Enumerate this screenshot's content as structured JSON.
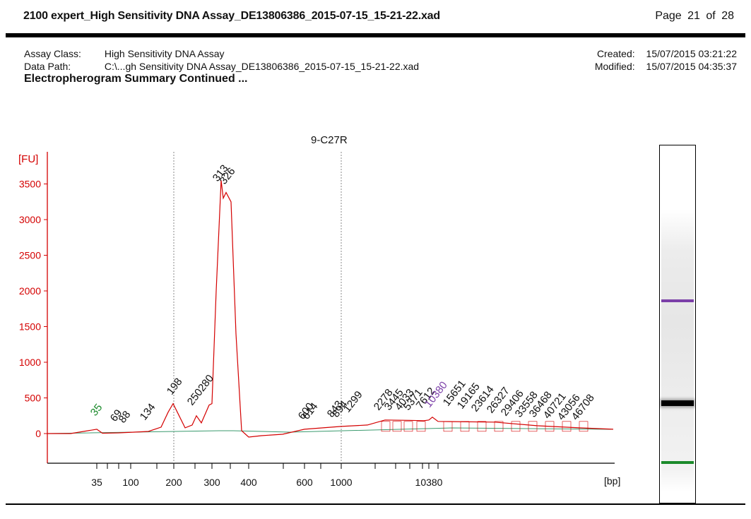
{
  "header": {
    "file_title": "2100 expert_High Sensitivity DNA Assay_DE13806386_2015-07-15_15-21-22.xad",
    "page_word": "Page",
    "page_current": "21",
    "page_of": "of",
    "page_total": "28"
  },
  "meta": {
    "assay_class_label": "Assay Class:",
    "assay_class_value": "High Sensitivity DNA Assay",
    "data_path_label": "Data Path:",
    "data_path_value": "C:\\...gh Sensitivity DNA Assay_DE13806386_2015-07-15_15-21-22.xad",
    "created_label": "Created:",
    "created_value": "15/07/2015 03:21:22 ",
    "modified_label": "Modified:",
    "modified_value": "15/07/2015 04:35:37 "
  },
  "section_title": "Electropherogram Summary Continued ...",
  "colors": {
    "axis": "#d40000",
    "trace": "#d40000",
    "baseline": "#3a9a6e",
    "lower_marker": "#1b8a2b",
    "upper_marker": "#7b3fa8",
    "peak_label": "#111111",
    "gel_band": "#000000"
  },
  "chart_data": {
    "type": "line",
    "title": "9-C27R",
    "ylabel": "[FU]",
    "xlabel": "[bp]",
    "ylim": [
      -400,
      3800
    ],
    "yticks": [
      0,
      500,
      1000,
      1500,
      2000,
      2500,
      3000,
      3500
    ],
    "x_scale": "migration (non-linear, bp)",
    "xticks": [
      {
        "label": "35"
      },
      {
        "label": "100"
      },
      {
        "label": "200"
      },
      {
        "label": "300"
      },
      {
        "label": "400"
      },
      {
        "label": "600"
      },
      {
        "label": "1000"
      },
      {
        "label": "10380"
      }
    ],
    "grid": "vertical dotted lines at 200, 1000 bp",
    "series": [
      {
        "points": [
          {
            "bp": "start",
            "fu": 0
          },
          {
            "bp": "35",
            "fu": 60
          },
          {
            "bp": "69",
            "fu": 10
          },
          {
            "bp": "134",
            "fu": 30
          },
          {
            "bp": "198",
            "fu": 420
          },
          {
            "bp": "250",
            "fu": 250
          },
          {
            "bp": "280",
            "fu": 400
          },
          {
            "bp": "313",
            "fu": 3550
          },
          {
            "bp": "326",
            "fu": 3380
          },
          {
            "bp": "400",
            "fu": -50
          },
          {
            "bp": "600",
            "fu": 60
          },
          {
            "bp": "1000",
            "fu": 100
          },
          {
            "bp": "10380",
            "fu": 190
          },
          {
            "bp": "end",
            "fu": 60
          }
        ]
      }
    ],
    "peak_labels": [
      {
        "text": "35",
        "kind": "lower_marker"
      },
      {
        "text": "69",
        "kind": "peak"
      },
      {
        "text": "88",
        "kind": "peak"
      },
      {
        "text": "134",
        "kind": "peak"
      },
      {
        "text": "198",
        "kind": "peak"
      },
      {
        "text": "250280",
        "kind": "peak"
      },
      {
        "text": "313",
        "kind": "peak"
      },
      {
        "text": "326",
        "kind": "peak"
      },
      {
        "text": "600",
        "kind": "peak"
      },
      {
        "text": "614",
        "kind": "peak"
      },
      {
        "text": "843",
        "kind": "peak"
      },
      {
        "text": "894",
        "kind": "peak"
      },
      {
        "text": "1299",
        "kind": "peak"
      },
      {
        "text": "2278",
        "kind": "peak"
      },
      {
        "text": "3445",
        "kind": "peak"
      },
      {
        "text": "4033",
        "kind": "peak"
      },
      {
        "text": "5371",
        "kind": "peak"
      },
      {
        "text": "7612",
        "kind": "peak"
      },
      {
        "text": "10380",
        "kind": "upper_marker"
      },
      {
        "text": "15651",
        "kind": "peak"
      },
      {
        "text": "19165",
        "kind": "peak"
      },
      {
        "text": "23614",
        "kind": "peak"
      },
      {
        "text": "26327",
        "kind": "peak"
      },
      {
        "text": "29406",
        "kind": "peak"
      },
      {
        "text": "33558",
        "kind": "peak"
      },
      {
        "text": "36468",
        "kind": "peak"
      },
      {
        "text": "40721",
        "kind": "peak"
      },
      {
        "text": "43056",
        "kind": "peak"
      },
      {
        "text": "46708",
        "kind": "peak"
      }
    ]
  },
  "gel": {
    "bands": [
      {
        "name": "upper-marker-band",
        "color": "#7b3fa8",
        "fraction": 0.43
      },
      {
        "name": "main-band",
        "color": "#000000",
        "fraction": 0.71
      },
      {
        "name": "lower-marker-band",
        "color": "#1b8a2b",
        "fraction": 0.88
      }
    ]
  }
}
